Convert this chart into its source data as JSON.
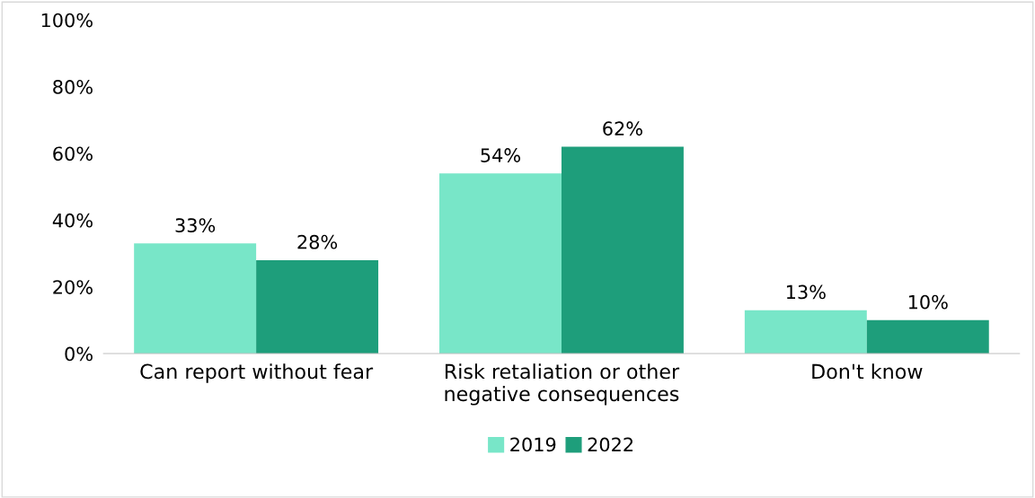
{
  "chart_data": {
    "type": "bar",
    "categories": [
      "Can report without fear",
      "Risk retaliation or other\nnegative consequences",
      "Don't know"
    ],
    "series": [
      {
        "name": "2019",
        "color": "#78e6c8",
        "values": [
          33,
          54,
          13
        ],
        "value_labels": [
          "33%",
          "54%",
          "13%"
        ]
      },
      {
        "name": "2022",
        "color": "#1e9e7b",
        "values": [
          28,
          62,
          10
        ],
        "value_labels": [
          "28%",
          "62%",
          "10%"
        ]
      }
    ],
    "ylim": [
      0,
      100
    ],
    "yticks": [
      {
        "value": 0,
        "label": "0%"
      },
      {
        "value": 20,
        "label": "20%"
      },
      {
        "value": 40,
        "label": "40%"
      },
      {
        "value": 60,
        "label": "60%"
      },
      {
        "value": 80,
        "label": "80%"
      },
      {
        "value": 100,
        "label": "100%"
      }
    ],
    "grid": false,
    "legend": "bottom"
  }
}
